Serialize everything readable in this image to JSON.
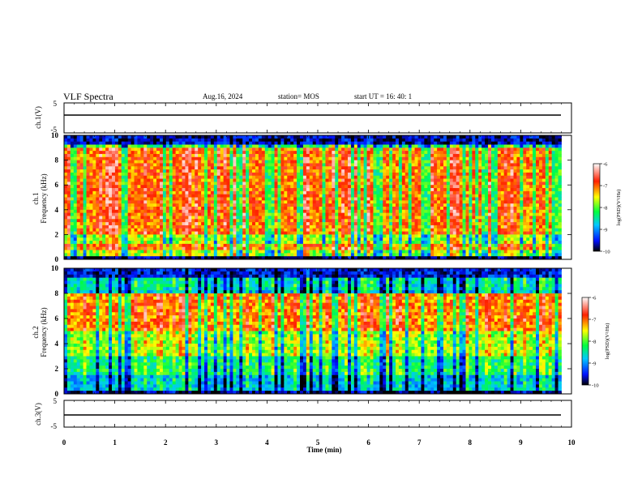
{
  "header": {
    "title": "VLF Spectra",
    "date": "Aug.16, 2024",
    "station": "station= MOS",
    "start": "start  UT  =   16: 40: 1"
  },
  "chart_data": [
    {
      "type": "line",
      "panel": "ch1-waveform",
      "ylabel": "ch.1(V)",
      "ylim": [
        -5,
        5
      ],
      "yticks": [
        "5",
        "-5"
      ],
      "baseline": -0.5,
      "xlim": [
        0,
        10
      ]
    },
    {
      "type": "heatmap",
      "panel": "ch1-spectrogram",
      "ylabel": "ch.1\nFrequency (kHz)",
      "ylabel_line1": "ch.1",
      "ylabel_line2": "Frequency (kHz)",
      "ylim": [
        0,
        10
      ],
      "yticks": [
        "0",
        "2",
        "4",
        "6",
        "8",
        "10"
      ],
      "xlim": [
        0,
        9.8
      ],
      "colorbar": {
        "label": "log(PSD)(V²/Hz)",
        "range": [
          -10,
          -6
        ],
        "ticks": [
          "-6",
          "-7",
          "-8",
          "-9",
          "-10"
        ]
      },
      "profile": "broadband",
      "description_values": {
        "peak_band_kHz": [
          0.5,
          9
        ],
        "level_range": [
          -10,
          -6
        ]
      }
    },
    {
      "type": "heatmap",
      "panel": "ch2-spectrogram",
      "ylabel_line1": "ch.2",
      "ylabel_line2": "Frequency (kHz)",
      "ylim": [
        0,
        10
      ],
      "yticks": [
        "0",
        "2",
        "4",
        "6",
        "8",
        "10"
      ],
      "xlim": [
        0,
        9.8
      ],
      "colorbar": {
        "label": "log(PSD)(V²/Hz)",
        "range": [
          -10,
          -6
        ],
        "ticks": [
          "-6",
          "-7",
          "-8",
          "-9",
          "-10"
        ]
      },
      "profile": "midband",
      "description_values": {
        "peak_band_kHz": [
          5,
          8
        ],
        "level_range": [
          -10,
          -6
        ]
      }
    },
    {
      "type": "line",
      "panel": "ch3-waveform",
      "ylabel": "ch.3(V)",
      "ylim": [
        -5,
        5
      ],
      "yticks": [
        "5",
        "-5"
      ],
      "baseline": -0.5,
      "xlim": [
        0,
        10
      ]
    }
  ],
  "xaxis": {
    "label": "Time (min)",
    "ticks": [
      "0",
      "1",
      "2",
      "3",
      "4",
      "5",
      "6",
      "7",
      "8",
      "9",
      "10"
    ],
    "range": [
      0,
      10
    ]
  }
}
